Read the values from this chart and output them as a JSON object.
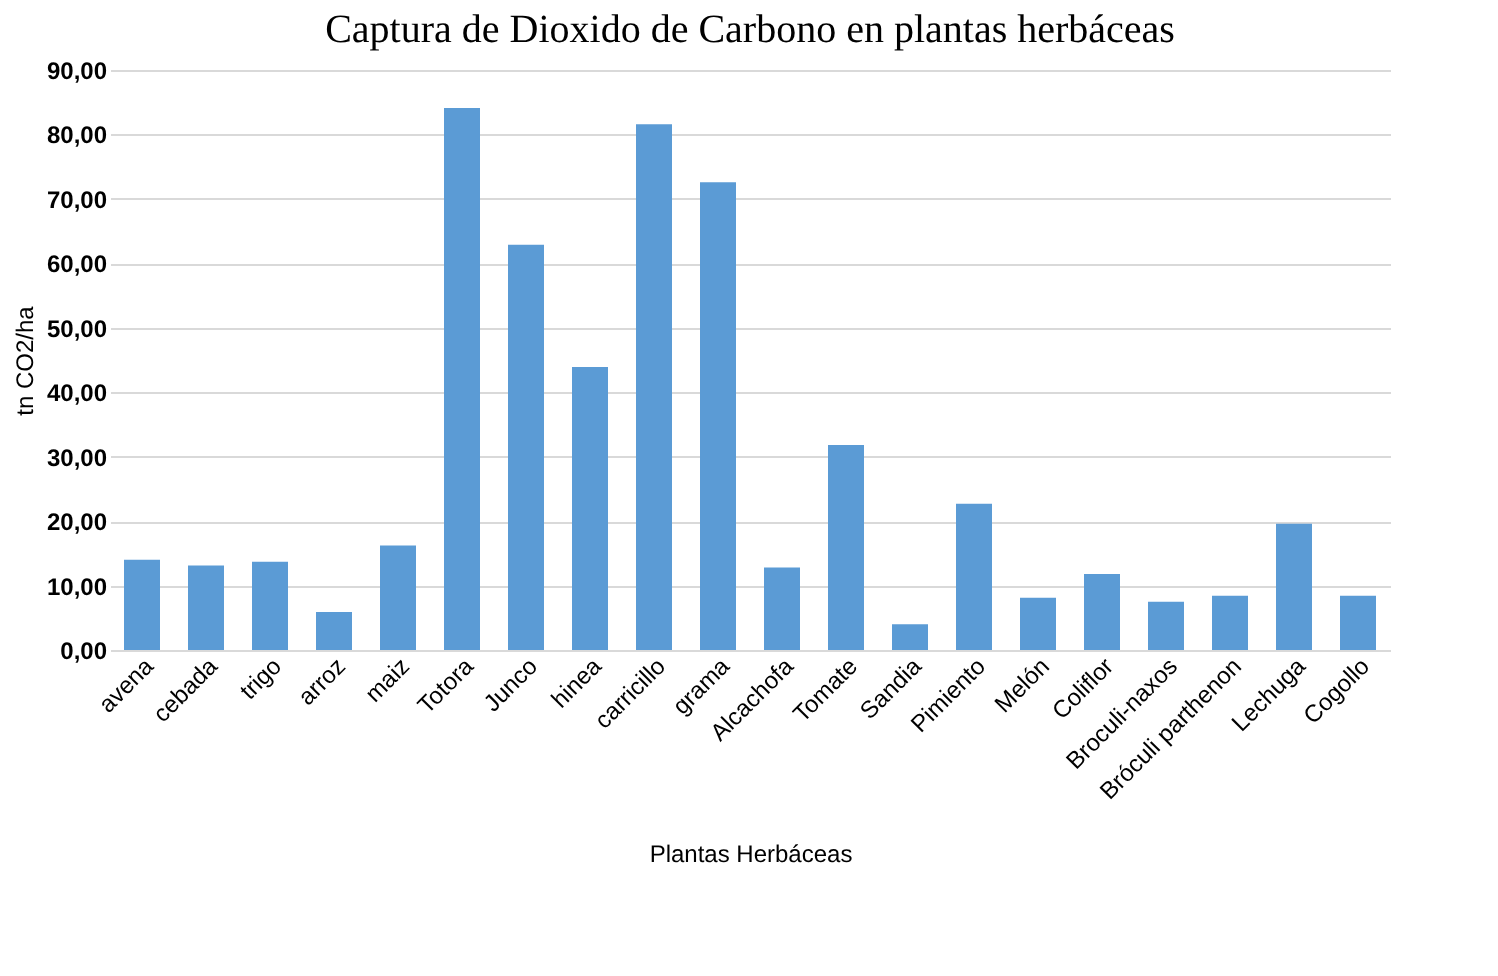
{
  "chart_data": {
    "type": "bar",
    "title": "Captura de Dioxido de Carbono en plantas herbáceas",
    "xlabel": "Plantas Herbáceas",
    "ylabel": "tn CO2/ha",
    "categories": [
      "avena",
      "cebada",
      "trigo",
      "arroz",
      "maiz",
      "Totora",
      "Junco",
      "hinea",
      "carricillo",
      "grama",
      "Alcachofa",
      "Tomate",
      "Sandia",
      "Pimiento",
      "Melón",
      "Coliflor",
      "Broculi-naxos",
      "Bróculi parthenon",
      "Lechuga",
      "Cogollo"
    ],
    "values": [
      14.0,
      13.1,
      13.7,
      5.9,
      16.2,
      84.1,
      62.9,
      43.9,
      81.6,
      72.6,
      12.8,
      31.8,
      4.0,
      22.7,
      8.1,
      11.8,
      7.5,
      8.4,
      19.6,
      8.4
    ],
    "color": "#5b9bd5",
    "ylim": [
      0,
      90
    ],
    "yticks": [
      {
        "value": 0,
        "label": "0,00"
      },
      {
        "value": 10,
        "label": "10,00"
      },
      {
        "value": 20,
        "label": "20,00"
      },
      {
        "value": 30,
        "label": "30,00"
      },
      {
        "value": 40,
        "label": "40,00"
      },
      {
        "value": 50,
        "label": "50,00"
      },
      {
        "value": 60,
        "label": "60,00"
      },
      {
        "value": 70,
        "label": "70,00"
      },
      {
        "value": 80,
        "label": "80,00"
      },
      {
        "value": 90,
        "label": "90,00"
      }
    ],
    "grid": "y"
  }
}
